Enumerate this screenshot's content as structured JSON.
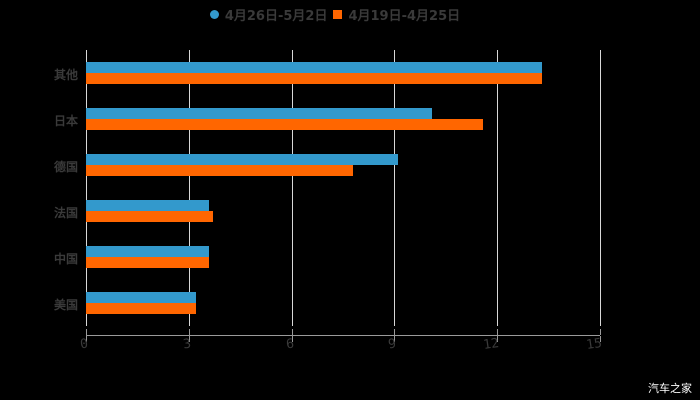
{
  "legend": [
    {
      "label": "4月26日-5月2日",
      "marker": "circle",
      "color": "#3399cc"
    },
    {
      "label": "4月19日-4月25日",
      "marker": "square",
      "color": "#ff6600"
    }
  ],
  "watermark": "汽车之家",
  "chart_data": {
    "type": "bar",
    "orientation": "horizontal",
    "title": "",
    "xlabel": "",
    "ylabel": "",
    "categories": [
      "其他",
      "日本",
      "德国",
      "法国",
      "中国",
      "美国"
    ],
    "series": [
      {
        "name": "4月26日-5月2日",
        "color": "#3399cc",
        "values": [
          13.3,
          10.1,
          9.1,
          3.6,
          3.6,
          3.2
        ]
      },
      {
        "name": "4月19日-4月25日",
        "color": "#ff6600",
        "values": [
          13.3,
          11.6,
          7.8,
          3.7,
          3.6,
          3.2
        ]
      }
    ],
    "xlim": [
      0,
      15
    ],
    "xticks": [
      "0",
      "3",
      "6",
      "9",
      "12",
      "15"
    ],
    "grid": true,
    "legend_position": "top"
  }
}
